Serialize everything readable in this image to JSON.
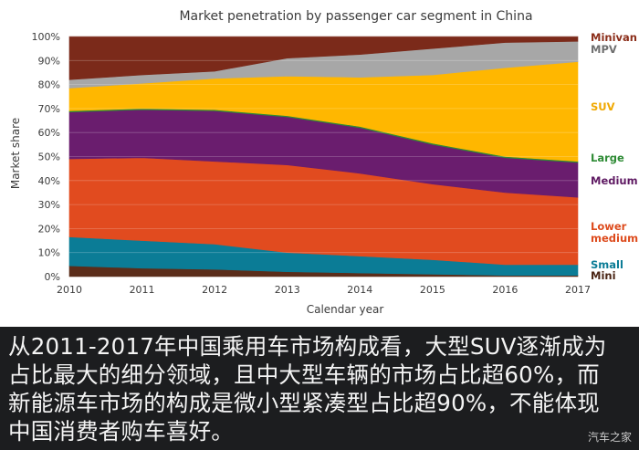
{
  "chart_data": {
    "type": "area",
    "stacked": true,
    "title": "Market penetration by passenger car segment in China",
    "xlabel": "Calendar year",
    "ylabel": "Market share",
    "x": [
      2010,
      2011,
      2012,
      2013,
      2014,
      2015,
      2016,
      2017
    ],
    "x_tick_labels": [
      "2010",
      "2011",
      "2012",
      "2013",
      "2014",
      "2015",
      "2016",
      "2017"
    ],
    "y_tick_labels": [
      "0%",
      "10%",
      "20%",
      "30%",
      "40%",
      "50%",
      "60%",
      "70%",
      "80%",
      "90%",
      "100%"
    ],
    "ylim": [
      0,
      100
    ],
    "unit": "%",
    "legend_placement": "right",
    "series": [
      {
        "name": "Mini",
        "color": "#5b2d1a",
        "values": [
          4.5,
          3.5,
          3.0,
          2.0,
          1.5,
          1.0,
          0.5,
          0.5
        ]
      },
      {
        "name": "Small",
        "color": "#0b7c96",
        "values": [
          12.0,
          11.5,
          10.5,
          8.0,
          7.0,
          6.0,
          4.5,
          4.5
        ]
      },
      {
        "name": "Lower medium",
        "color": "#e14b1f",
        "values": [
          32.5,
          34.5,
          34.5,
          36.5,
          34.5,
          31.5,
          30.0,
          28.0
        ]
      },
      {
        "name": "Medium",
        "color": "#6a1d6e",
        "values": [
          19.5,
          20.0,
          21.0,
          20.0,
          19.0,
          16.5,
          14.5,
          14.5
        ]
      },
      {
        "name": "Large",
        "color": "#2f8a34",
        "values": [
          0.5,
          0.5,
          0.5,
          0.5,
          0.5,
          0.5,
          0.5,
          0.5
        ]
      },
      {
        "name": "SUV",
        "color": "#ffb700",
        "values": [
          9.5,
          10.5,
          13.0,
          16.5,
          20.5,
          28.5,
          37.0,
          41.5
        ]
      },
      {
        "name": "MPV",
        "color": "#a7a7a7",
        "values": [
          3.5,
          3.5,
          3.0,
          7.5,
          9.5,
          11.0,
          10.5,
          8.5
        ]
      },
      {
        "name": "Minivan",
        "color": "#7b2a1a",
        "values": [
          18.0,
          16.0,
          14.5,
          9.0,
          7.5,
          5.0,
          2.5,
          2.0
        ]
      }
    ],
    "legend": [
      {
        "label": "Minivan",
        "color": "#8b2d19"
      },
      {
        "label": "MPV",
        "color": "#6f6f6f"
      },
      {
        "label": "SUV",
        "color": "#f0a800"
      },
      {
        "label": "Large",
        "color": "#2e8b35"
      },
      {
        "label": "Medium",
        "color": "#5f1a63"
      },
      {
        "label": "Lower\nmedium",
        "color": "#dd4b1d"
      },
      {
        "label": "Small",
        "color": "#0b7c96"
      },
      {
        "label": "Mini",
        "color": "#4a2414"
      }
    ]
  },
  "caption": {
    "lines": [
      "从2011-2017年中国乘用车市场构成看，大型SUV逐渐成为",
      "占比最大的细分领域，且中大型车辆的市场占比超60%，而",
      "新能源车市场的构成是微小型紧凑型占比超90%，不能体现",
      "中国消费者购车喜好。"
    ]
  },
  "watermark": "汽车之家"
}
